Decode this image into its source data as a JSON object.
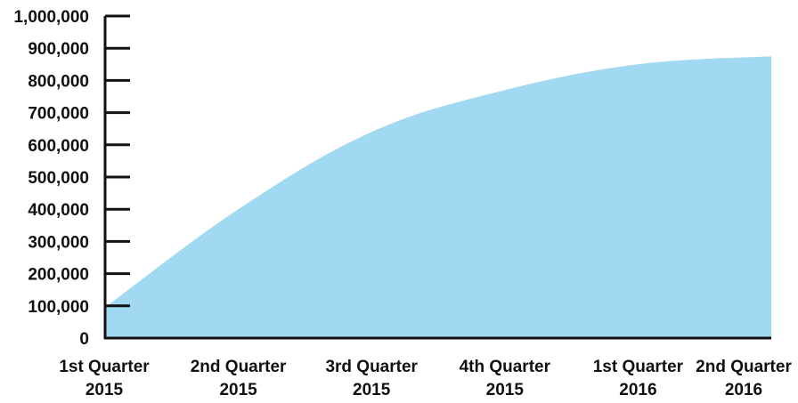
{
  "chart_data": {
    "type": "area",
    "title": "",
    "xlabel": "",
    "ylabel": "",
    "categories": [
      [
        "1st Quarter",
        "2015"
      ],
      [
        "2nd Quarter",
        "2015"
      ],
      [
        "3rd Quarter",
        "2015"
      ],
      [
        "4th Quarter",
        "2015"
      ],
      [
        "1st Quarter",
        "2016"
      ],
      [
        "2nd Quarter",
        "2016"
      ]
    ],
    "values": [
      95000,
      400000,
      640000,
      770000,
      850000,
      875000
    ],
    "ylim": [
      0,
      1000000
    ],
    "yticks": [
      {
        "value": 0,
        "label": "0"
      },
      {
        "value": 100000,
        "label": "100,000"
      },
      {
        "value": 200000,
        "label": "200,000"
      },
      {
        "value": 300000,
        "label": "300,000"
      },
      {
        "value": 400000,
        "label": "400,000"
      },
      {
        "value": 500000,
        "label": "500,000"
      },
      {
        "value": 600000,
        "label": "600,000"
      },
      {
        "value": 700000,
        "label": "700,000"
      },
      {
        "value": 800000,
        "label": "800,000"
      },
      {
        "value": 900000,
        "label": "900,000"
      },
      {
        "value": 1000000,
        "label": "1,000,000"
      }
    ],
    "grid": false,
    "legend": "none",
    "colors": {
      "area": "#a1d8f2",
      "axis": "#111111",
      "text": "#111111"
    }
  }
}
